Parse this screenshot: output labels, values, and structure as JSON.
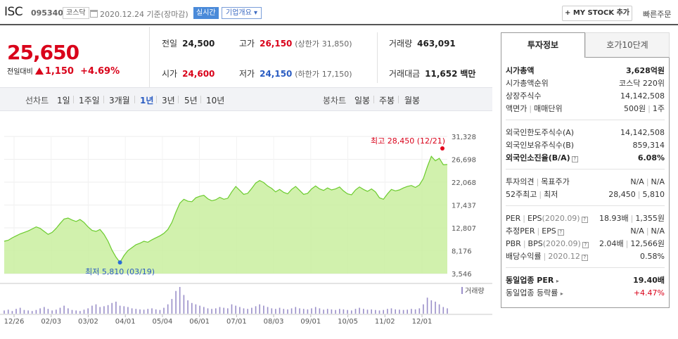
{
  "header": {
    "name": "ISC",
    "code": "095340",
    "market": "코스닥",
    "date": "2020.12.24 기준(장마감)",
    "realtime": "실시간",
    "company_info": "기업개요 ▾",
    "mystock": "+ MY STOCK 추가",
    "quick_order": "빠른주문"
  },
  "quote": {
    "price": "25,650",
    "change_label": "전일대비",
    "change_abs": "1,150",
    "change_pct": "+4.69%",
    "prev_label": "전일",
    "prev": "24,500",
    "high_label": "고가",
    "high": "26,150",
    "upper_label": "(상한가",
    "upper": "31,850)",
    "volume_label": "거래량",
    "volume": "463,091",
    "open_label": "시가",
    "open": "24,600",
    "low_label": "저가",
    "low": "24,150",
    "lower_label": "(하한가",
    "lower": "17,150)",
    "amount_label": "거래대금",
    "amount": "11,652",
    "amount_unit": "백만"
  },
  "periods": {
    "line_label": "선차트",
    "line_items": [
      "1일",
      "1주일",
      "3개월",
      "1년",
      "3년",
      "5년",
      "10년"
    ],
    "selected": "1년",
    "candle_label": "봉차트",
    "candle_items": [
      "일봉",
      "주봉",
      "월봉"
    ]
  },
  "chart_data": {
    "type": "area",
    "y_ticks": [
      "31,328",
      "26,698",
      "22,068",
      "17,437",
      "12,807",
      "8,176",
      "3,546"
    ],
    "ylim": [
      3546,
      31328
    ],
    "x_ticks": [
      "12/26",
      "02/03",
      "03/02",
      "04/01",
      "05/04",
      "06/01",
      "07/01",
      "08/03",
      "09/01",
      "10/05",
      "11/02",
      "12/01"
    ],
    "high_label": "최고 28,450 (12/21)",
    "low_label": "최저 5,810 (03/19)",
    "volume_label": "거래량",
    "grid": true,
    "series": [
      {
        "values": [
          10100,
          10300,
          10800,
          11200,
          11600,
          11900,
          12200,
          12600,
          13000,
          12700,
          12100,
          11500,
          11900,
          12700,
          13700,
          14600,
          14800,
          14400,
          14100,
          14500,
          13900,
          13000,
          12300,
          12100,
          12500,
          11500,
          10100,
          8300,
          6900,
          5810,
          7200,
          8200,
          8800,
          9400,
          9700,
          10100,
          9900,
          10400,
          10800,
          11200,
          11700,
          12500,
          13900,
          16000,
          17800,
          18600,
          18200,
          18100,
          18900,
          19200,
          19400,
          18700,
          18300,
          18500,
          19000,
          18600,
          18800,
          20100,
          21200,
          20400,
          19600,
          19800,
          20800,
          21900,
          22400,
          22000,
          21300,
          20800,
          20100,
          20600,
          20000,
          19700,
          20600,
          21200,
          20400,
          19600,
          19800,
          20700,
          21300,
          20700,
          20400,
          20900,
          20500,
          20700,
          21100,
          20300,
          19700,
          19500,
          20500,
          21100,
          20600,
          20200,
          20700,
          20100,
          18900,
          18600,
          19700,
          20600,
          20300,
          20500,
          20900,
          21200,
          21400,
          21000,
          21500,
          22800,
          25200,
          27300,
          26400,
          26900,
          25600,
          25650
        ]
      }
    ],
    "volume": [
      0.12,
      0.15,
      0.1,
      0.18,
      0.22,
      0.14,
      0.12,
      0.1,
      0.14,
      0.2,
      0.25,
      0.18,
      0.12,
      0.15,
      0.22,
      0.3,
      0.2,
      0.14,
      0.12,
      0.1,
      0.15,
      0.2,
      0.3,
      0.35,
      0.25,
      0.28,
      0.32,
      0.4,
      0.45,
      0.3,
      0.28,
      0.25,
      0.2,
      0.18,
      0.16,
      0.15,
      0.18,
      0.2,
      0.16,
      0.14,
      0.22,
      0.35,
      0.55,
      0.85,
      1.0,
      0.7,
      0.5,
      0.4,
      0.35,
      0.3,
      0.25,
      0.2,
      0.18,
      0.2,
      0.25,
      0.22,
      0.2,
      0.35,
      0.3,
      0.25,
      0.2,
      0.18,
      0.22,
      0.28,
      0.35,
      0.3,
      0.25,
      0.2,
      0.18,
      0.22,
      0.18,
      0.16,
      0.2,
      0.25,
      0.2,
      0.18,
      0.16,
      0.2,
      0.25,
      0.2,
      0.15,
      0.18,
      0.16,
      0.14,
      0.18,
      0.16,
      0.14,
      0.12,
      0.18,
      0.22,
      0.18,
      0.15,
      0.16,
      0.14,
      0.12,
      0.14,
      0.18,
      0.2,
      0.16,
      0.15,
      0.14,
      0.15,
      0.18,
      0.16,
      0.2,
      0.35,
      0.6,
      0.5,
      0.45,
      0.35,
      0.25,
      0.2
    ]
  },
  "tabs": [
    "투자정보",
    "호가10단계"
  ],
  "invest": {
    "market_cap_label": "시가총액",
    "market_cap": "3,628억원",
    "cap_rank_label": "시가총액순위",
    "cap_rank": "코스닥 220위",
    "listed_label": "상장주식수",
    "listed": "14,142,508",
    "par_label": "액면가",
    "unit_label": "매매단위",
    "par": "500원",
    "unit": "1주",
    "foreign_limit_label": "외국인한도주식수(A)",
    "foreign_limit": "14,142,508",
    "foreign_hold_label": "외국인보유주식수(B)",
    "foreign_hold": "859,314",
    "foreign_rate_label": "외국인소진율(B/A)",
    "foreign_rate": "6.08%",
    "opinion_label": "투자의견",
    "target_label": "목표주가",
    "opinion": "N/A",
    "target": "N/A",
    "w52_high_label": "52주최고",
    "w52_low_label": "최저",
    "w52_high": "28,450",
    "w52_low": "5,810",
    "per_label": "PER",
    "eps_label": "EPS",
    "eps_year": "(2020.09)",
    "per": "18.93배",
    "eps": "1,355원",
    "est_per_label": "추정PER",
    "est_eps_label": "EPS",
    "est_per": "N/A",
    "est_eps": "N/A",
    "pbr_label": "PBR",
    "bps_label": "BPS",
    "bps_year": "(2020.09)",
    "pbr": "2.04배",
    "bps": "12,566원",
    "div_label": "배당수익률",
    "div_year": "2020.12",
    "div": "0.58%",
    "sector_per_label": "동일업종 PER",
    "sector_per": "19.40배",
    "sector_chg_label": "동일업종 등락률",
    "sector_chg": "+4.47%"
  }
}
